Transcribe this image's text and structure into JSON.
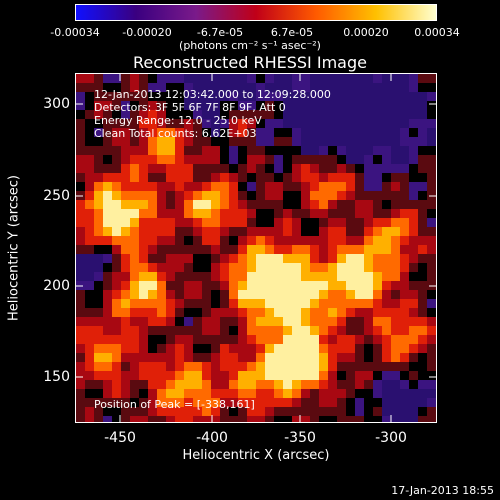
{
  "colorbar": {
    "ticks": [
      "-0.00034",
      "-0.00020",
      "-6.7e-05",
      "6.7e-05",
      "0.00020",
      "0.00034"
    ],
    "units": "(photons cm⁻² s⁻¹ asec⁻²)",
    "colors": [
      "#1010ff",
      "#3a0080",
      "#7a1a8a",
      "#c00018",
      "#ff5a00",
      "#ffc000",
      "#ffffd0"
    ]
  },
  "title": "Reconstructed RHESSI Image",
  "info": {
    "line1": "12-Jan-2013 12:03:42.000 to 12:09:28.000",
    "line2": "Detectors: 3F 5F 6F 7F 8F 9F, Att 0",
    "line3": "Energy Range: 12.0 - 25.0 keV",
    "line4": "Clean     Total counts: 6.62E+03",
    "peak": "Position of Peak = [-338,161]"
  },
  "axes": {
    "xlabel": "Heliocentric X (arcsec)",
    "ylabel": "Heliocentric Y (arcsec)",
    "xticks": [
      "-450",
      "-400",
      "-350",
      "-300"
    ],
    "yticks": [
      "300",
      "250",
      "200",
      "150"
    ],
    "xrange": [
      -472,
      -277
    ],
    "yrange": [
      122,
      315
    ]
  },
  "footer": "17-Jan-2013 18:55"
}
